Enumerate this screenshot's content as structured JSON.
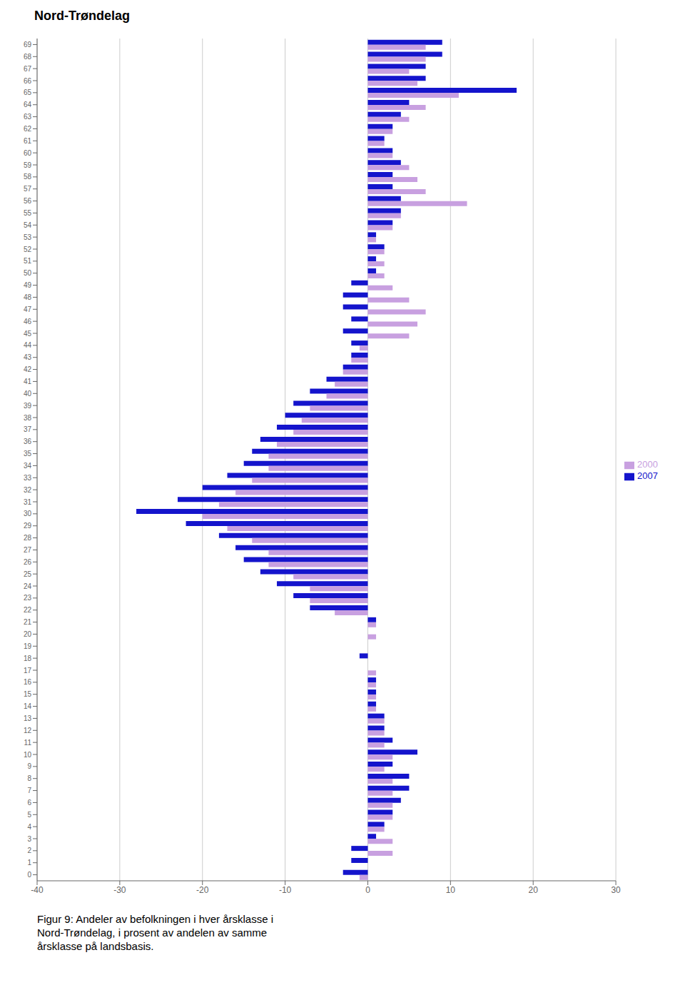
{
  "chart_data": {
    "type": "bar",
    "orientation": "horizontal",
    "title": "Nord-Trøndelag",
    "caption": [
      "Figur 9: Andeler av befolkningen i hver årsklasse i",
      "Nord-Trøndelag, i prosent av andelen av samme",
      "årsklasse på landsbasis."
    ],
    "categories": [
      0,
      1,
      2,
      3,
      4,
      5,
      6,
      7,
      8,
      9,
      10,
      11,
      12,
      13,
      14,
      15,
      16,
      17,
      18,
      19,
      20,
      21,
      22,
      23,
      24,
      25,
      26,
      27,
      28,
      29,
      30,
      31,
      32,
      33,
      34,
      35,
      36,
      37,
      38,
      39,
      40,
      41,
      42,
      43,
      44,
      45,
      46,
      47,
      48,
      49,
      50,
      51,
      52,
      53,
      54,
      55,
      56,
      57,
      58,
      59,
      60,
      61,
      62,
      63,
      64,
      65,
      66,
      67,
      68,
      69
    ],
    "series": [
      {
        "name": "2007",
        "color": "#1414CC",
        "values": [
          -3,
          -2,
          -2,
          1,
          2,
          3,
          4,
          5,
          5,
          3,
          6,
          3,
          2,
          2,
          1,
          1,
          1,
          0,
          -1,
          0,
          0,
          1,
          -7,
          -9,
          -11,
          -13,
          -15,
          -16,
          -18,
          -22,
          -28,
          -23,
          -20,
          -17,
          -15,
          -14,
          -13,
          -11,
          -10,
          -9,
          -7,
          -5,
          -3,
          -2,
          -2,
          -3,
          -2,
          -3,
          -3,
          -2,
          1,
          1,
          2,
          1,
          3,
          4,
          4,
          3,
          3,
          4,
          3,
          2,
          3,
          4,
          5,
          18,
          7,
          7,
          9,
          9
        ]
      },
      {
        "name": "2000",
        "color": "#C8A0E0",
        "values": [
          -1,
          0,
          3,
          3,
          2,
          3,
          3,
          3,
          3,
          2,
          3,
          2,
          2,
          2,
          1,
          1,
          1,
          1,
          0,
          0,
          1,
          1,
          -4,
          -7,
          -7,
          -9,
          -12,
          -12,
          -14,
          -17,
          -20,
          -18,
          -16,
          -14,
          -12,
          -12,
          -11,
          -9,
          -8,
          -7,
          -5,
          -4,
          -3,
          -2,
          -1,
          5,
          6,
          7,
          5,
          3,
          2,
          2,
          2,
          1,
          3,
          4,
          12,
          7,
          6,
          5,
          3,
          2,
          3,
          5,
          7,
          11,
          6,
          5,
          7,
          7
        ]
      }
    ],
    "xlim": [
      -40,
      30
    ],
    "xticks": [
      -40,
      -30,
      -20,
      -10,
      0,
      10,
      20,
      30
    ],
    "grid": true,
    "legend": "right"
  }
}
